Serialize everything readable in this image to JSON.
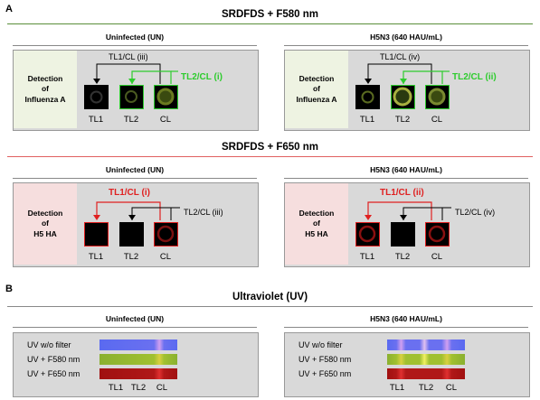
{
  "panel_a": {
    "letter": "A",
    "section1": {
      "title": "SRDFDS + F580 nm",
      "left": {
        "condition": "Uninfected (UN)",
        "detection": [
          "Detection",
          "of",
          "Influenza  A"
        ],
        "top_label": "TL1/CL (iii)",
        "side_label": "TL2/CL (i)",
        "wells": [
          "TL1",
          "TL2",
          "CL"
        ]
      },
      "right": {
        "condition": "H5N3 (640 HAU/mL)",
        "detection": [
          "Detection",
          "of",
          "Influenza  A"
        ],
        "top_label": "TL1/CL (iv)",
        "side_label": "TL2/CL (ii)",
        "wells": [
          "TL1",
          "TL2",
          "CL"
        ]
      }
    },
    "section2": {
      "title": "SRDFDS + F650 nm",
      "left": {
        "condition": "Uninfected (UN)",
        "detection": [
          "Detection",
          "of",
          "H5 HA"
        ],
        "top_label": "TL1/CL (i)",
        "side_label": "TL2/CL (iii)",
        "wells": [
          "TL1",
          "TL2",
          "CL"
        ]
      },
      "right": {
        "condition": "H5N3 (640 HAU/mL)",
        "detection": [
          "Detection",
          "of",
          "H5 HA"
        ],
        "top_label": "TL1/CL (ii)",
        "side_label": "TL2/CL (iv)",
        "wells": [
          "TL1",
          "TL2",
          "CL"
        ]
      }
    }
  },
  "panel_b": {
    "letter": "B",
    "title": "Ultraviolet (UV)",
    "left": {
      "condition": "Uninfected (UN)",
      "rows": [
        "UV w/o filter",
        "UV + F580 nm",
        "UV + F650 nm"
      ],
      "lines": [
        "TL1",
        "TL2",
        "CL"
      ]
    },
    "right": {
      "condition": "H5N3 (640 HAU/mL)",
      "rows": [
        "UV w/o filter",
        "UV + F580 nm",
        "UV + F650 nm"
      ],
      "lines": [
        "TL1",
        "TL2",
        "CL"
      ]
    }
  },
  "colors": {
    "green_accent": "#2ecc2e",
    "red_accent": "#e02020",
    "green_rule": "#5a8f3a",
    "red_rule": "#e06060",
    "gray_rule": "#888888",
    "detect_green_bg": "#eef3e2",
    "detect_red_bg": "#f6dede"
  }
}
